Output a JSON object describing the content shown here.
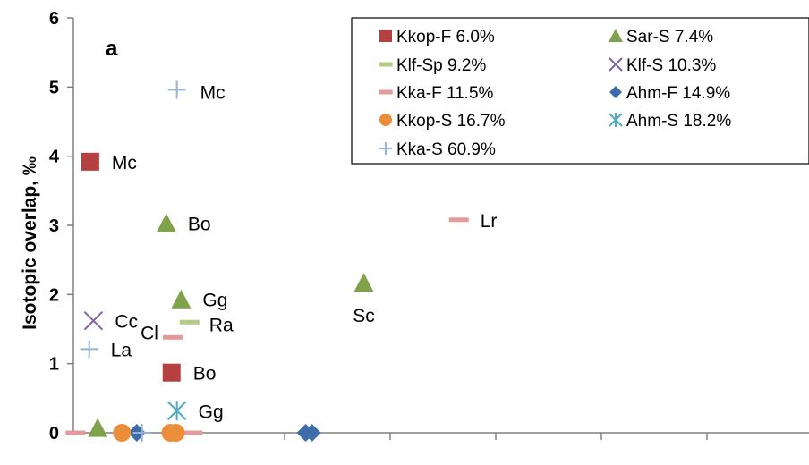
{
  "chart_data": {
    "type": "scatter",
    "panel_label": "a",
    "ylabel": "Isotopic overlap, ‰",
    "ylim": [
      0,
      6
    ],
    "y_ticks": [
      "0",
      "1",
      "2",
      "3",
      "4",
      "5",
      "6"
    ],
    "x_tick_count": 7,
    "legend_columns": 2,
    "legend_placement": "top-right",
    "series": [
      {
        "name": "Kkop-F 6.0%",
        "marker": "square",
        "color": "#B5403F",
        "points": [
          {
            "x": 0.16,
            "y": 3.92
          },
          {
            "x": 0.93,
            "y": 0.87
          }
        ]
      },
      {
        "name": "Sar-S 7.4%",
        "marker": "triangle",
        "color": "#7FA24A",
        "points": [
          {
            "x": 0.23,
            "y": 0.07
          },
          {
            "x": 0.88,
            "y": 3.03
          },
          {
            "x": 1.02,
            "y": 1.93
          },
          {
            "x": 2.75,
            "y": 2.17
          }
        ]
      },
      {
        "name": "Klf-Sp 9.2%",
        "marker": "dash",
        "color": "#B3CD87",
        "points": [
          {
            "x": 1.1,
            "y": 1.6
          }
        ]
      },
      {
        "name": "Klf-S 10.3%",
        "marker": "x",
        "color": "#8064A2",
        "points": [
          {
            "x": 0.19,
            "y": 1.62
          }
        ]
      },
      {
        "name": "Kka-F 11.5%",
        "marker": "dash",
        "color": "#E39A9A",
        "points": [
          {
            "x": 0.02,
            "y": 0.0
          },
          {
            "x": 0.94,
            "y": 1.38
          },
          {
            "x": 1.13,
            "y": 0.0
          },
          {
            "x": 3.65,
            "y": 3.08
          }
        ]
      },
      {
        "name": "Ahm-F 14.9%",
        "marker": "diamond",
        "color": "#3D6CA8",
        "points": [
          {
            "x": 0.6,
            "y": 0.0
          },
          {
            "x": 2.2,
            "y": 0.0
          },
          {
            "x": 2.26,
            "y": 0.0
          }
        ]
      },
      {
        "name": "Kkop-S 16.7%",
        "marker": "circle",
        "color": "#EB8E3A",
        "points": [
          {
            "x": 0.46,
            "y": 0.0
          },
          {
            "x": 0.92,
            "y": 0.0
          },
          {
            "x": 0.97,
            "y": 0.0
          }
        ]
      },
      {
        "name": "Ahm-S 18.2%",
        "marker": "asterisk",
        "color": "#4BACC6",
        "points": [
          {
            "x": 0.98,
            "y": 0.32
          }
        ]
      },
      {
        "name": "Kka-S 60.9%",
        "marker": "plus",
        "color": "#95B3D7",
        "points": [
          {
            "x": 0.15,
            "y": 1.21
          },
          {
            "x": 0.65,
            "y": 0.0
          },
          {
            "x": 0.98,
            "y": 4.96
          }
        ]
      }
    ],
    "annotations": [
      {
        "text": "Mc",
        "x": 0.98,
        "y": 4.96
      },
      {
        "text": "Mc",
        "x": 0.16,
        "y": 3.92
      },
      {
        "text": "Bo",
        "x": 0.88,
        "y": 3.03
      },
      {
        "text": "Gg",
        "x": 1.02,
        "y": 1.93
      },
      {
        "text": "Ra",
        "x": 1.1,
        "y": 1.6
      },
      {
        "text": "Cc",
        "x": 0.19,
        "y": 1.62
      },
      {
        "text": "Cl",
        "x": 0.94,
        "y": 1.38
      },
      {
        "text": "La",
        "x": 0.15,
        "y": 1.21
      },
      {
        "text": "Bo",
        "x": 0.93,
        "y": 0.87
      },
      {
        "text": "Gg",
        "x": 0.98,
        "y": 0.32
      },
      {
        "text": "Lr",
        "x": 3.65,
        "y": 3.08
      },
      {
        "text": "Sc",
        "x": 2.75,
        "y": 2.17
      }
    ]
  }
}
